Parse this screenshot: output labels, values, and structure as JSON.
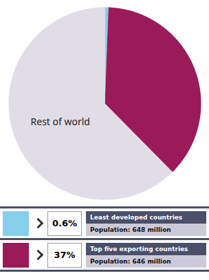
{
  "chart_data": {
    "type": "pie",
    "categories": [
      "Least developed countries",
      "Top five exporting countries",
      "Rest of world"
    ],
    "values": [
      0.6,
      37.0,
      62.4
    ],
    "value_labels": [
      "0.6%",
      "37%",
      null
    ],
    "colors": [
      "#87CEEB",
      "#9B1A5A",
      "#E0DDE6"
    ],
    "annotations": [
      "Population: 648 million",
      "Population: 646 million",
      null
    ],
    "legend": "bottom"
  }
}
